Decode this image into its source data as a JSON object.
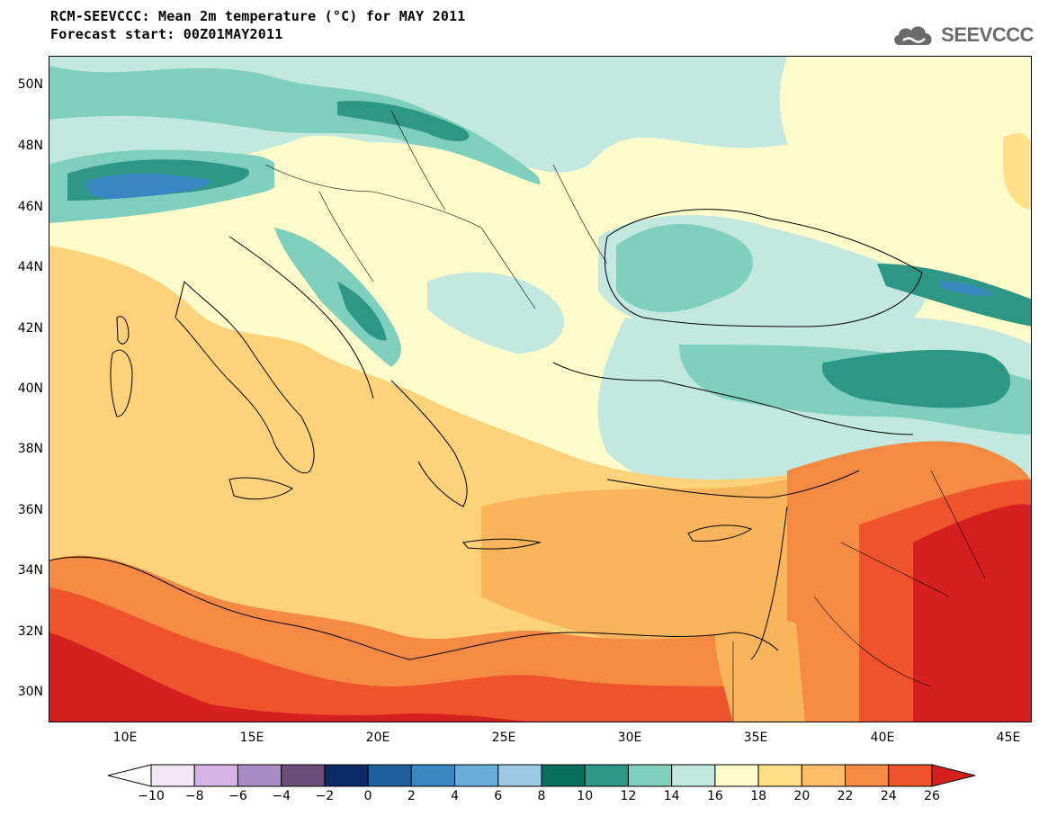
{
  "title_line1": "RCM-SEEVCCC: Mean 2m temperature (°C) for MAY 2011",
  "title_line2": "Forecast start: 00Z01MAY2011",
  "logo": {
    "text": "SEEVCCC",
    "icon": "cloud-icon",
    "color": "#6a6a6a"
  },
  "map": {
    "lat_labels": [
      "50N",
      "48N",
      "46N",
      "44N",
      "42N",
      "40N",
      "38N",
      "36N",
      "34N",
      "32N",
      "30N"
    ],
    "lon_labels": [
      "10E",
      "15E",
      "20E",
      "25E",
      "30E",
      "35E",
      "40E",
      "45E"
    ]
  },
  "colorbar": {
    "labels": [
      "-10",
      "-8",
      "-6",
      "-4",
      "-2",
      "0",
      "2",
      "4",
      "6",
      "8",
      "10",
      "12",
      "14",
      "16",
      "18",
      "20",
      "22",
      "24",
      "26"
    ],
    "low_extension_color": "#ffffff",
    "high_extension_color": "#d62020",
    "colors": [
      "#f3e6f5",
      "#d8b2e6",
      "#a98cc4",
      "#6b4e78",
      "#0a2a66",
      "#1f5f9e",
      "#3a86c2",
      "#69aed8",
      "#9cc8e4",
      "#0a6e5c",
      "#2e9684",
      "#7fcfbe",
      "#c2e8e0",
      "#fefbcb",
      "#fde087",
      "#fbbd67",
      "#f58a44",
      "#ef532b"
    ]
  },
  "map_colors": {
    "sea_warm": "#fdd27a",
    "sea_hot": "#f9b45c",
    "black_sea": "#7fcfbe",
    "land_cool": "#c2e8e0",
    "land_mild": "#fefbcb",
    "land_teal": "#2e9684",
    "alps": "#3a86c2",
    "desert_hot": "#ef532b",
    "desert_hottest": "#d62020"
  }
}
